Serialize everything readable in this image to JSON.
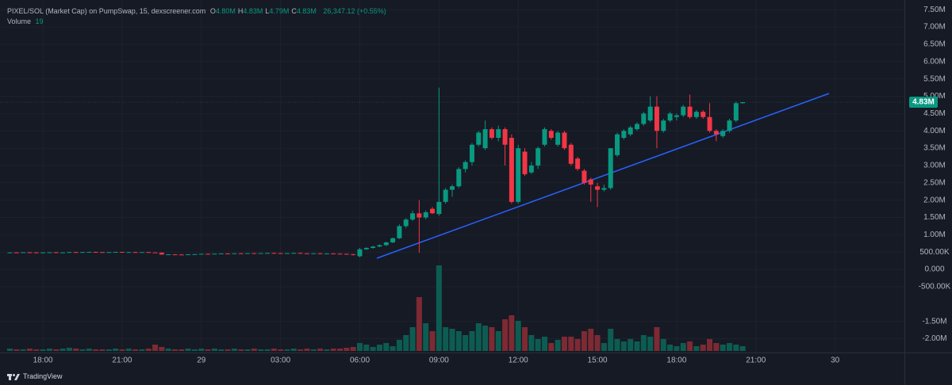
{
  "chart_data": {
    "type": "candlestick",
    "title": "PIXEL/SOL (Market Cap) on PumpSwap, 15, dexscreener.com",
    "ohlc_legend": [
      {
        "label": "O",
        "value": "4.80M"
      },
      {
        "label": "H",
        "value": "4.83M"
      },
      {
        "label": "L",
        "value": "4.79M"
      },
      {
        "label": "C",
        "value": "4.83M"
      }
    ],
    "change": "26,347.12 (+0.55%)",
    "volume_legend": {
      "label": "Volume",
      "value": "19"
    },
    "brand": "TradingView",
    "up_color": "#089981",
    "down_color": "#f23645",
    "volume_up_color": "#0d5c52",
    "volume_down_color": "#7d2a33",
    "xlim": [
      16.375,
      50.625
    ],
    "xticks": [
      {
        "value": 18,
        "label": "18:00"
      },
      {
        "value": 21,
        "label": "21:00"
      },
      {
        "value": 24,
        "label": "29"
      },
      {
        "value": 27,
        "label": "03:00"
      },
      {
        "value": 30,
        "label": "06:00"
      },
      {
        "value": 33,
        "label": "09:00"
      },
      {
        "value": 36,
        "label": "12:00"
      },
      {
        "value": 39,
        "label": "15:00"
      },
      {
        "value": 42,
        "label": "18:00"
      },
      {
        "value": 45,
        "label": "21:00"
      },
      {
        "value": 48,
        "label": "30"
      }
    ],
    "ylim": [
      -2400000,
      7780000
    ],
    "yticks": [
      {
        "value": 7500000,
        "label": "7.50M"
      },
      {
        "value": 7000000,
        "label": "7.00M"
      },
      {
        "value": 6500000,
        "label": "6.50M"
      },
      {
        "value": 6000000,
        "label": "6.00M"
      },
      {
        "value": 5500000,
        "label": "5.50M"
      },
      {
        "value": 5000000,
        "label": "5.00M"
      },
      {
        "value": 4500000,
        "label": "4.50M"
      },
      {
        "value": 4000000,
        "label": "4.00M"
      },
      {
        "value": 3500000,
        "label": "3.50M"
      },
      {
        "value": 3000000,
        "label": "3.00M"
      },
      {
        "value": 2500000,
        "label": "2.50M"
      },
      {
        "value": 2000000,
        "label": "2.00M"
      },
      {
        "value": 1500000,
        "label": "1.50M"
      },
      {
        "value": 1000000,
        "label": "1.00M"
      },
      {
        "value": 500000,
        "label": "500.00K"
      },
      {
        "value": 0,
        "label": "0.000"
      },
      {
        "value": -500000,
        "label": "-500.00K"
      },
      {
        "value": -1500000,
        "label": "-1.50M"
      },
      {
        "value": -2000000,
        "label": "-2.00M"
      }
    ],
    "last_price": {
      "value": 4830000,
      "label": "4.83M"
    },
    "candles": [
      {
        "x": 16.75,
        "o": 480000,
        "h": 495000,
        "l": 470000,
        "c": 490000,
        "v": 3
      },
      {
        "x": 17,
        "o": 490000,
        "h": 500000,
        "l": 480000,
        "c": 485000,
        "v": 2
      },
      {
        "x": 17.25,
        "o": 485000,
        "h": 495000,
        "l": 475000,
        "c": 495000,
        "v": 2
      },
      {
        "x": 17.5,
        "o": 495000,
        "h": 505000,
        "l": 485000,
        "c": 490000,
        "v": 3
      },
      {
        "x": 17.75,
        "o": 490000,
        "h": 500000,
        "l": 480000,
        "c": 480000,
        "v": 2
      },
      {
        "x": 18,
        "o": 480000,
        "h": 495000,
        "l": 470000,
        "c": 490000,
        "v": 2
      },
      {
        "x": 18.25,
        "o": 490000,
        "h": 500000,
        "l": 485000,
        "c": 495000,
        "v": 3
      },
      {
        "x": 18.5,
        "o": 495000,
        "h": 505000,
        "l": 485000,
        "c": 485000,
        "v": 2
      },
      {
        "x": 18.75,
        "o": 485000,
        "h": 495000,
        "l": 480000,
        "c": 490000,
        "v": 3
      },
      {
        "x": 19,
        "o": 490000,
        "h": 510000,
        "l": 485000,
        "c": 500000,
        "v": 4
      },
      {
        "x": 19.25,
        "o": 500000,
        "h": 510000,
        "l": 490000,
        "c": 495000,
        "v": 3
      },
      {
        "x": 19.5,
        "o": 495000,
        "h": 505000,
        "l": 485000,
        "c": 500000,
        "v": 2
      },
      {
        "x": 19.75,
        "o": 500000,
        "h": 510000,
        "l": 490000,
        "c": 505000,
        "v": 3
      },
      {
        "x": 20,
        "o": 505000,
        "h": 515000,
        "l": 495000,
        "c": 500000,
        "v": 2
      },
      {
        "x": 20.25,
        "o": 500000,
        "h": 510000,
        "l": 490000,
        "c": 495000,
        "v": 2
      },
      {
        "x": 20.5,
        "o": 495000,
        "h": 505000,
        "l": 485000,
        "c": 500000,
        "v": 2
      },
      {
        "x": 20.75,
        "o": 500000,
        "h": 510000,
        "l": 490000,
        "c": 505000,
        "v": 3
      },
      {
        "x": 21,
        "o": 505000,
        "h": 510000,
        "l": 495000,
        "c": 495000,
        "v": 2
      },
      {
        "x": 21.25,
        "o": 495000,
        "h": 505000,
        "l": 485000,
        "c": 500000,
        "v": 3
      },
      {
        "x": 21.5,
        "o": 500000,
        "h": 510000,
        "l": 490000,
        "c": 495000,
        "v": 2
      },
      {
        "x": 21.75,
        "o": 495000,
        "h": 505000,
        "l": 485000,
        "c": 500000,
        "v": 2
      },
      {
        "x": 22,
        "o": 500000,
        "h": 510000,
        "l": 490000,
        "c": 490000,
        "v": 3
      },
      {
        "x": 22.25,
        "o": 490000,
        "h": 495000,
        "l": 480000,
        "c": 485000,
        "v": 8
      },
      {
        "x": 22.5,
        "o": 485000,
        "h": 490000,
        "l": 420000,
        "c": 430000,
        "v": 5
      },
      {
        "x": 22.75,
        "o": 430000,
        "h": 440000,
        "l": 420000,
        "c": 435000,
        "v": 3
      },
      {
        "x": 23,
        "o": 435000,
        "h": 440000,
        "l": 425000,
        "c": 430000,
        "v": 2
      },
      {
        "x": 23.25,
        "o": 430000,
        "h": 440000,
        "l": 420000,
        "c": 425000,
        "v": 2
      },
      {
        "x": 23.5,
        "o": 425000,
        "h": 440000,
        "l": 420000,
        "c": 435000,
        "v": 3
      },
      {
        "x": 23.75,
        "o": 435000,
        "h": 445000,
        "l": 425000,
        "c": 440000,
        "v": 2
      },
      {
        "x": 24,
        "o": 440000,
        "h": 455000,
        "l": 430000,
        "c": 450000,
        "v": 3
      },
      {
        "x": 24.25,
        "o": 450000,
        "h": 460000,
        "l": 440000,
        "c": 445000,
        "v": 2
      },
      {
        "x": 24.5,
        "o": 445000,
        "h": 455000,
        "l": 435000,
        "c": 455000,
        "v": 3
      },
      {
        "x": 24.75,
        "o": 455000,
        "h": 465000,
        "l": 445000,
        "c": 460000,
        "v": 2
      },
      {
        "x": 25,
        "o": 460000,
        "h": 470000,
        "l": 450000,
        "c": 455000,
        "v": 2
      },
      {
        "x": 25.25,
        "o": 455000,
        "h": 465000,
        "l": 445000,
        "c": 465000,
        "v": 3
      },
      {
        "x": 25.5,
        "o": 465000,
        "h": 475000,
        "l": 455000,
        "c": 460000,
        "v": 2
      },
      {
        "x": 25.75,
        "o": 460000,
        "h": 470000,
        "l": 450000,
        "c": 470000,
        "v": 2
      },
      {
        "x": 26,
        "o": 470000,
        "h": 480000,
        "l": 460000,
        "c": 465000,
        "v": 3
      },
      {
        "x": 26.25,
        "o": 465000,
        "h": 475000,
        "l": 455000,
        "c": 470000,
        "v": 2
      },
      {
        "x": 26.5,
        "o": 470000,
        "h": 480000,
        "l": 460000,
        "c": 475000,
        "v": 2
      },
      {
        "x": 26.75,
        "o": 475000,
        "h": 485000,
        "l": 465000,
        "c": 470000,
        "v": 3
      },
      {
        "x": 27,
        "o": 470000,
        "h": 480000,
        "l": 460000,
        "c": 465000,
        "v": 2
      },
      {
        "x": 27.25,
        "o": 465000,
        "h": 475000,
        "l": 455000,
        "c": 470000,
        "v": 2
      },
      {
        "x": 27.5,
        "o": 470000,
        "h": 480000,
        "l": 460000,
        "c": 475000,
        "v": 3
      },
      {
        "x": 27.75,
        "o": 475000,
        "h": 485000,
        "l": 465000,
        "c": 465000,
        "v": 2
      },
      {
        "x": 28,
        "o": 465000,
        "h": 475000,
        "l": 455000,
        "c": 460000,
        "v": 3
      },
      {
        "x": 28.25,
        "o": 460000,
        "h": 470000,
        "l": 450000,
        "c": 465000,
        "v": 2
      },
      {
        "x": 28.5,
        "o": 465000,
        "h": 475000,
        "l": 455000,
        "c": 455000,
        "v": 3
      },
      {
        "x": 28.75,
        "o": 455000,
        "h": 465000,
        "l": 445000,
        "c": 460000,
        "v": 2
      },
      {
        "x": 29,
        "o": 460000,
        "h": 470000,
        "l": 450000,
        "c": 455000,
        "v": 3
      },
      {
        "x": 29.25,
        "o": 455000,
        "h": 465000,
        "l": 440000,
        "c": 450000,
        "v": 3
      },
      {
        "x": 29.5,
        "o": 450000,
        "h": 460000,
        "l": 430000,
        "c": 440000,
        "v": 4
      },
      {
        "x": 29.75,
        "o": 440000,
        "h": 450000,
        "l": 400000,
        "c": 420000,
        "v": 5
      },
      {
        "x": 30,
        "o": 380000,
        "h": 620000,
        "l": 350000,
        "c": 580000,
        "v": 10
      },
      {
        "x": 30.25,
        "o": 580000,
        "h": 640000,
        "l": 560000,
        "c": 620000,
        "v": 8
      },
      {
        "x": 30.5,
        "o": 620000,
        "h": 680000,
        "l": 600000,
        "c": 660000,
        "v": 5
      },
      {
        "x": 30.75,
        "o": 660000,
        "h": 720000,
        "l": 640000,
        "c": 700000,
        "v": 8
      },
      {
        "x": 31,
        "o": 700000,
        "h": 800000,
        "l": 680000,
        "c": 780000,
        "v": 10
      },
      {
        "x": 31.25,
        "o": 780000,
        "h": 920000,
        "l": 760000,
        "c": 900000,
        "v": 6
      },
      {
        "x": 31.5,
        "o": 900000,
        "h": 1300000,
        "l": 880000,
        "c": 1250000,
        "v": 14
      },
      {
        "x": 31.75,
        "o": 1250000,
        "h": 1480000,
        "l": 1200000,
        "c": 1440000,
        "v": 20
      },
      {
        "x": 32,
        "o": 1440000,
        "h": 1700000,
        "l": 1400000,
        "c": 1620000,
        "v": 30
      },
      {
        "x": 32.25,
        "o": 1620000,
        "h": 2000000,
        "l": 480000,
        "c": 1500000,
        "v": 68
      },
      {
        "x": 32.5,
        "o": 1500000,
        "h": 1700000,
        "l": 1450000,
        "c": 1650000,
        "v": 35
      },
      {
        "x": 32.75,
        "o": 1750000,
        "h": 1800000,
        "l": 1600000,
        "c": 1620000,
        "v": 25
      },
      {
        "x": 33,
        "o": 1600000,
        "h": 5250000,
        "l": 1550000,
        "c": 1950000,
        "v": 108
      },
      {
        "x": 33.25,
        "o": 1950000,
        "h": 2350000,
        "l": 1900000,
        "c": 2300000,
        "v": 30
      },
      {
        "x": 33.5,
        "o": 2300000,
        "h": 2450000,
        "l": 2100000,
        "c": 2400000,
        "v": 28
      },
      {
        "x": 33.75,
        "o": 2400000,
        "h": 2950000,
        "l": 2350000,
        "c": 2900000,
        "v": 25
      },
      {
        "x": 34,
        "o": 2900000,
        "h": 3150000,
        "l": 2800000,
        "c": 3100000,
        "v": 20
      },
      {
        "x": 34.25,
        "o": 3100000,
        "h": 3650000,
        "l": 3000000,
        "c": 3600000,
        "v": 25
      },
      {
        "x": 34.5,
        "o": 3600000,
        "h": 4000000,
        "l": 3550000,
        "c": 3950000,
        "v": 35
      },
      {
        "x": 34.75,
        "o": 3500000,
        "h": 4300000,
        "l": 3450000,
        "c": 4050000,
        "v": 32
      },
      {
        "x": 35,
        "o": 4050000,
        "h": 4100000,
        "l": 3750000,
        "c": 3800000,
        "v": 30
      },
      {
        "x": 35.25,
        "o": 3800000,
        "h": 4150000,
        "l": 3700000,
        "c": 4050000,
        "v": 25
      },
      {
        "x": 35.5,
        "o": 4050000,
        "h": 4100000,
        "l": 3000000,
        "c": 3600000,
        "v": 40
      },
      {
        "x": 35.75,
        "o": 3800000,
        "h": 3900000,
        "l": 1900000,
        "c": 1950000,
        "v": 45
      },
      {
        "x": 36,
        "o": 1950000,
        "h": 3600000,
        "l": 1900000,
        "c": 3500000,
        "v": 38
      },
      {
        "x": 36.25,
        "o": 3400000,
        "h": 3500000,
        "l": 2700000,
        "c": 2750000,
        "v": 30
      },
      {
        "x": 36.5,
        "o": 2800000,
        "h": 3100000,
        "l": 2750000,
        "c": 3000000,
        "v": 20
      },
      {
        "x": 36.75,
        "o": 3000000,
        "h": 3550000,
        "l": 2900000,
        "c": 3500000,
        "v": 15
      },
      {
        "x": 37,
        "o": 3600000,
        "h": 4100000,
        "l": 3550000,
        "c": 4050000,
        "v": 18
      },
      {
        "x": 37.25,
        "o": 4000000,
        "h": 4050000,
        "l": 3750000,
        "c": 3800000,
        "v": 10
      },
      {
        "x": 37.5,
        "o": 3600000,
        "h": 4000000,
        "l": 3550000,
        "c": 3950000,
        "v": 14
      },
      {
        "x": 37.75,
        "o": 3950000,
        "h": 4000000,
        "l": 3450000,
        "c": 3500000,
        "v": 18
      },
      {
        "x": 38,
        "o": 3600000,
        "h": 3650000,
        "l": 3000000,
        "c": 3050000,
        "v": 18
      },
      {
        "x": 38.25,
        "o": 3200000,
        "h": 3250000,
        "l": 2850000,
        "c": 2900000,
        "v": 15
      },
      {
        "x": 38.5,
        "o": 2850000,
        "h": 2900000,
        "l": 2450000,
        "c": 2500000,
        "v": 25
      },
      {
        "x": 38.75,
        "o": 2600000,
        "h": 2650000,
        "l": 1950000,
        "c": 2450000,
        "v": 28
      },
      {
        "x": 39,
        "o": 2400000,
        "h": 2500000,
        "l": 1800000,
        "c": 2300000,
        "v": 20
      },
      {
        "x": 39.25,
        "o": 2300000,
        "h": 2450000,
        "l": 2250000,
        "c": 2350000,
        "v": 10
      },
      {
        "x": 39.5,
        "o": 2350000,
        "h": 3500000,
        "l": 2300000,
        "c": 3500000,
        "v": 28
      },
      {
        "x": 39.75,
        "o": 3300000,
        "h": 3950000,
        "l": 3250000,
        "c": 3900000,
        "v": 15
      },
      {
        "x": 40,
        "o": 3800000,
        "h": 4050000,
        "l": 3750000,
        "c": 4000000,
        "v": 12
      },
      {
        "x": 40.25,
        "o": 3900000,
        "h": 4150000,
        "l": 3850000,
        "c": 4100000,
        "v": 15
      },
      {
        "x": 40.5,
        "o": 4050000,
        "h": 4250000,
        "l": 4000000,
        "c": 4200000,
        "v": 12
      },
      {
        "x": 40.75,
        "o": 4200000,
        "h": 4550000,
        "l": 4150000,
        "c": 4500000,
        "v": 20
      },
      {
        "x": 41,
        "o": 4300000,
        "h": 5000000,
        "l": 4250000,
        "c": 4700000,
        "v": 18
      },
      {
        "x": 41.25,
        "o": 4700000,
        "h": 5000000,
        "l": 3500000,
        "c": 4000000,
        "v": 30
      },
      {
        "x": 41.5,
        "o": 4000000,
        "h": 4350000,
        "l": 3950000,
        "c": 4300000,
        "v": 15
      },
      {
        "x": 41.75,
        "o": 4300000,
        "h": 4550000,
        "l": 4250000,
        "c": 4500000,
        "v": 8
      },
      {
        "x": 42,
        "o": 4400000,
        "h": 4500000,
        "l": 4300000,
        "c": 4450000,
        "v": 6
      },
      {
        "x": 42.25,
        "o": 4450000,
        "h": 4750000,
        "l": 4400000,
        "c": 4700000,
        "v": 10
      },
      {
        "x": 42.5,
        "o": 4700000,
        "h": 5050000,
        "l": 4350000,
        "c": 4400000,
        "v": 12
      },
      {
        "x": 42.75,
        "o": 4400000,
        "h": 4600000,
        "l": 4350000,
        "c": 4550000,
        "v": 6
      },
      {
        "x": 43,
        "o": 4550000,
        "h": 4600000,
        "l": 4350000,
        "c": 4400000,
        "v": 8
      },
      {
        "x": 43.25,
        "o": 4400000,
        "h": 4800000,
        "l": 3950000,
        "c": 4000000,
        "v": 15
      },
      {
        "x": 43.5,
        "o": 4000000,
        "h": 4050000,
        "l": 3700000,
        "c": 3900000,
        "v": 10
      },
      {
        "x": 43.75,
        "o": 3850000,
        "h": 4050000,
        "l": 3800000,
        "c": 4000000,
        "v": 8
      },
      {
        "x": 44,
        "o": 4000000,
        "h": 4350000,
        "l": 3950000,
        "c": 4300000,
        "v": 10
      },
      {
        "x": 44.25,
        "o": 4300000,
        "h": 4850000,
        "l": 4250000,
        "c": 4800000,
        "v": 8
      },
      {
        "x": 44.5,
        "o": 4800000,
        "h": 4830000,
        "l": 4790000,
        "c": 4830000,
        "v": 6
      }
    ]
  }
}
